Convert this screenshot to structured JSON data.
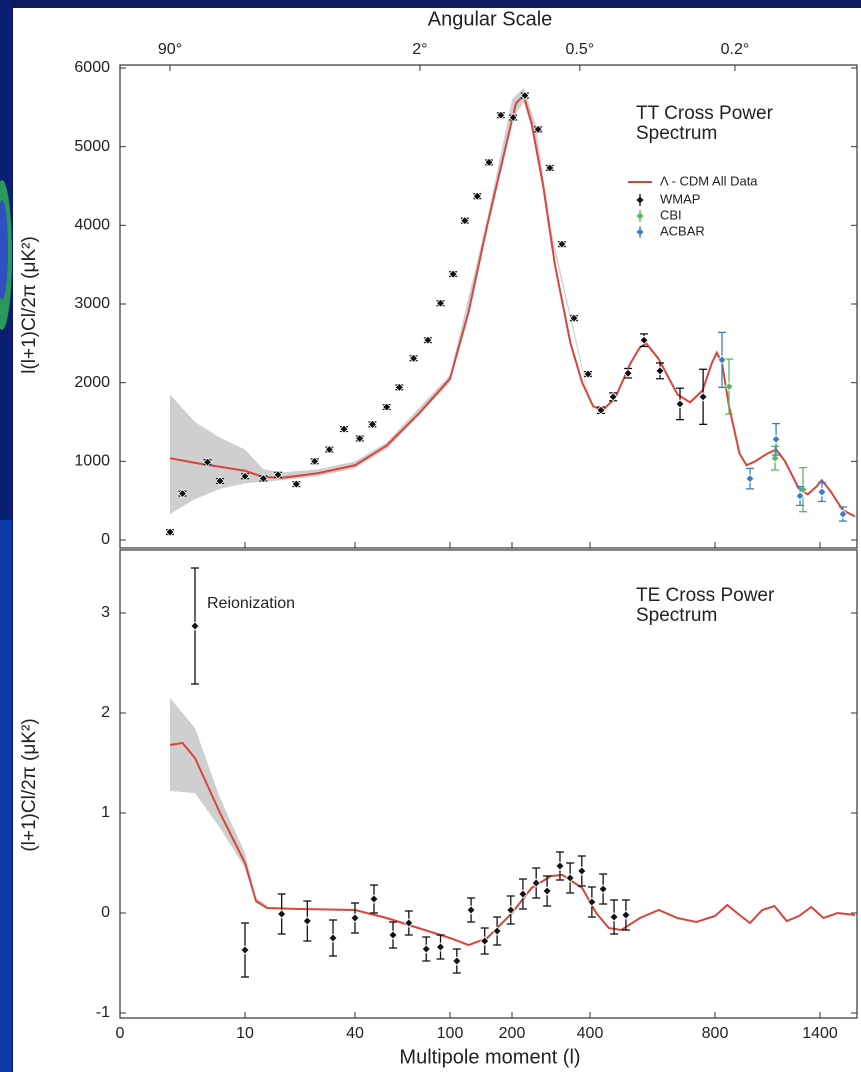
{
  "chart_data": [
    {
      "type": "errorbar",
      "x2label": "Angular Scale",
      "x2ticks": [
        {
          "value": 4,
          "label": "90°"
        },
        {
          "value": 81,
          "label": "2°"
        },
        {
          "value": 374,
          "label": "0.5°"
        },
        {
          "value": 914,
          "label": "0.2°"
        }
      ],
      "ylabel": "l(l+1)Cl/2π (μK²)",
      "annotation": "TT Cross Power Spectrum",
      "xlim": [
        0,
        1600
      ],
      "ylim": [
        0,
        6000
      ],
      "yticks": [
        0,
        1000,
        2000,
        3000,
        4000,
        5000,
        6000
      ],
      "legend": "upper right",
      "model": {
        "name": "Λ - CDM All Data",
        "color": "#d9453a",
        "x": [
          4,
          6,
          10,
          15,
          20,
          30,
          40,
          60,
          80,
          100,
          130,
          160,
          190,
          210,
          230,
          250,
          280,
          310,
          350,
          380,
          410,
          440,
          480,
          530,
          560,
          580,
          620,
          680,
          720,
          760,
          790,
          810,
          840,
          880,
          940,
          980,
          1030,
          1100,
          1150,
          1200,
          1280,
          1330,
          1380,
          1410,
          1460,
          1530,
          1600
        ],
        "values": [
          1040,
          980,
          880,
          800,
          790,
          850,
          950,
          1200,
          1600,
          2050,
          2900,
          4000,
          5000,
          5550,
          5650,
          5300,
          4500,
          3500,
          2500,
          2000,
          1700,
          1650,
          1800,
          2250,
          2450,
          2500,
          2300,
          1850,
          1750,
          1900,
          2250,
          2380,
          2250,
          1700,
          1100,
          950,
          1000,
          1100,
          1150,
          1000,
          650,
          580,
          680,
          760,
          620,
          380,
          300
        ]
      },
      "band": {
        "color": "#cfcfcf",
        "x": [
          4,
          6,
          8,
          10,
          15,
          20,
          30,
          40,
          60,
          100,
          160,
          200,
          230,
          260,
          300,
          400
        ],
        "lower": [
          330,
          520,
          650,
          720,
          740,
          760,
          810,
          910,
          1160,
          2000,
          3930,
          5350,
          5560,
          5100,
          3850,
          1740
        ],
        "upper": [
          1850,
          1500,
          1300,
          1150,
          900,
          860,
          900,
          1000,
          1240,
          2100,
          4080,
          5600,
          5750,
          5300,
          3950,
          1780
        ]
      },
      "series": [
        {
          "name": "WMAP",
          "color": "#111111",
          "x": [
            4,
            5,
            7,
            8,
            10,
            15,
            19,
            24,
            29,
            33,
            37,
            43,
            51,
            60,
            68,
            77,
            86,
            94,
            105,
            124,
            144,
            163,
            182,
            203,
            233,
            267,
            297,
            328,
            359,
            395,
            435,
            474,
            522,
            573,
            624,
            688,
            762
          ],
          "values": [
            100,
            590,
            990,
            750,
            810,
            780,
            830,
            710,
            1000,
            1150,
            1410,
            1290,
            1470,
            1690,
            1940,
            2310,
            2540,
            3010,
            3380,
            4060,
            4370,
            4800,
            5400,
            5370,
            5650,
            5220,
            4730,
            3760,
            2820,
            2110,
            1650,
            1820,
            2120,
            2540,
            2150,
            1730,
            1820
          ],
          "errors": [
            30,
            30,
            30,
            30,
            30,
            30,
            30,
            30,
            30,
            30,
            30,
            30,
            30,
            30,
            30,
            30,
            30,
            30,
            30,
            30,
            30,
            30,
            30,
            30,
            30,
            30,
            30,
            30,
            30,
            30,
            40,
            50,
            60,
            80,
            100,
            200,
            350
          ]
        },
        {
          "name": "CBI",
          "color": "#5cb85c",
          "x": [
            880,
            1143,
            1303
          ],
          "values": [
            1950,
            1040,
            640
          ],
          "errors": [
            350,
            150,
            280
          ]
        },
        {
          "name": "ACBAR",
          "color": "#3a7fc0",
          "x": [
            840,
            1000,
            1149,
            1286,
            1411,
            1531
          ],
          "values": [
            2290,
            780,
            1280,
            560,
            610,
            330
          ],
          "errors": [
            350,
            130,
            200,
            120,
            120,
            90
          ]
        }
      ]
    },
    {
      "type": "errorbar",
      "xlabel": "Multipole moment (l)",
      "xticks": [
        0,
        10,
        40,
        100,
        200,
        400,
        800,
        1400
      ],
      "ylabel": "(l+1)Cl/2π (μK²)",
      "annotation": "TE Cross Power Spectrum",
      "note": "Reionization",
      "xlim": [
        0,
        1600
      ],
      "ylim": [
        -1,
        3.5
      ],
      "yticks": [
        -1,
        0,
        1,
        2,
        3
      ],
      "model": {
        "color": "#d9453a",
        "x": [
          4,
          5,
          6,
          8,
          10,
          13,
          16,
          25,
          40,
          60,
          80,
          100,
          130,
          160,
          200,
          250,
          300,
          330,
          380,
          420,
          460,
          500,
          560,
          620,
          680,
          740,
          800,
          870,
          940,
          1000,
          1070,
          1140,
          1210,
          1280,
          1350,
          1420,
          1500,
          1600
        ],
        "values": [
          1.68,
          1.7,
          1.55,
          1,
          0.5,
          0.12,
          0.05,
          0.04,
          0.03,
          -0.05,
          -0.15,
          -0.25,
          -0.32,
          -0.25,
          0,
          0.25,
          0.37,
          0.38,
          0.25,
          0,
          -0.15,
          -0.17,
          -0.05,
          0.03,
          -0.05,
          -0.09,
          -0.03,
          0.08,
          -0.02,
          -0.1,
          0.03,
          0.07,
          -0.08,
          -0.03,
          0.06,
          -0.05,
          0,
          -0.02
        ]
      },
      "band": {
        "color": "#cfcfcf",
        "x": [
          4,
          6,
          8,
          10,
          13,
          16
        ],
        "lower": [
          1.22,
          1.2,
          0.85,
          0.45,
          0.1,
          0.05
        ],
        "upper": [
          2.15,
          1.85,
          1.15,
          0.6,
          0.15,
          0.08
        ]
      },
      "series": [
        {
          "color": "#111111",
          "x": [
            6,
            10,
            20,
            27,
            34,
            40,
            52,
            64,
            74,
            85,
            94,
            111,
            134,
            156,
            176,
            198,
            228,
            262,
            290,
            323,
            349,
            379,
            406,
            442,
            477,
            515
          ],
          "values": [
            2.87,
            -0.37,
            -0.01,
            -0.08,
            -0.25,
            -0.05,
            0.14,
            -0.22,
            -0.1,
            -0.36,
            -0.34,
            -0.48,
            0.03,
            -0.28,
            -0.18,
            0.03,
            0.19,
            0.3,
            0.22,
            0.47,
            0.35,
            0.42,
            0.11,
            0.24,
            -0.04,
            -0.02
          ],
          "errors": [
            0.58,
            0.27,
            0.2,
            0.2,
            0.18,
            0.15,
            0.14,
            0.13,
            0.12,
            0.12,
            0.12,
            0.12,
            0.12,
            0.13,
            0.14,
            0.14,
            0.15,
            0.15,
            0.15,
            0.14,
            0.15,
            0.15,
            0.15,
            0.15,
            0.17,
            0.15
          ]
        }
      ]
    }
  ]
}
